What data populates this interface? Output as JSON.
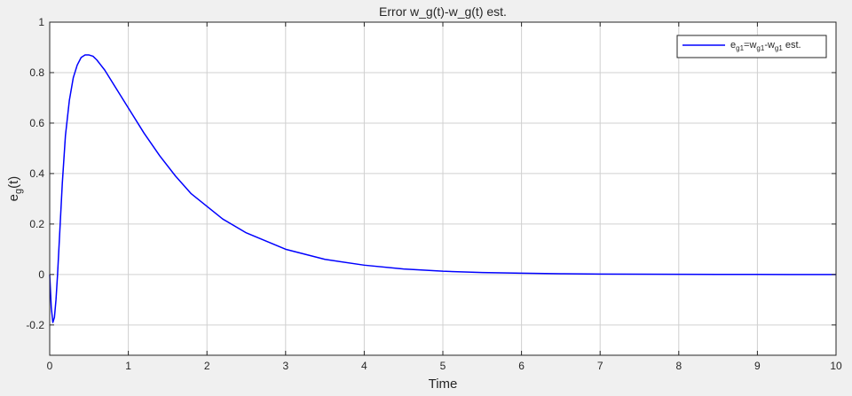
{
  "chart_data": {
    "type": "line",
    "title": "Error w_g(t)-w_g(t) est.",
    "xlabel": "Time",
    "ylabel": {
      "base": "e",
      "sub": "g",
      "rest": "(t)"
    },
    "xlim": [
      0,
      10
    ],
    "ylim": [
      -0.32,
      1
    ],
    "xticks": [
      0,
      1,
      2,
      3,
      4,
      5,
      6,
      7,
      8,
      9,
      10
    ],
    "xtick_labels": [
      "0",
      "1",
      "2",
      "3",
      "4",
      "5",
      "6",
      "7",
      "8",
      "9",
      "10"
    ],
    "yticks": [
      -0.2,
      0,
      0.2,
      0.4,
      0.6,
      0.8,
      1
    ],
    "ytick_labels": [
      "-0.2",
      "0",
      "0.2",
      "0.4",
      "0.6",
      "0.8",
      "1"
    ],
    "grid": true,
    "legend_position": "top-right",
    "colors": {
      "series": "#0000ff",
      "grid": "#d0d0d0",
      "axis": "#262626",
      "background": "#ffffff",
      "figure": "#f0f0f0"
    },
    "series": [
      {
        "name": {
          "p1": "e",
          "s1": "g1",
          "p2": "=w",
          "s2": "g1",
          "p3": "-w",
          "s3": "g1",
          "p4": " est."
        },
        "x": [
          0,
          0.02,
          0.04,
          0.06,
          0.08,
          0.1,
          0.13,
          0.16,
          0.2,
          0.25,
          0.3,
          0.35,
          0.4,
          0.45,
          0.5,
          0.55,
          0.6,
          0.65,
          0.7,
          0.8,
          0.9,
          1.0,
          1.2,
          1.4,
          1.6,
          1.8,
          2.0,
          2.2,
          2.5,
          3.0,
          3.5,
          4.0,
          4.5,
          5.0,
          5.5,
          6.0,
          6.5,
          7.0,
          7.5,
          8.0,
          8.5,
          9.0,
          9.5,
          10.0
        ],
        "y": [
          0,
          -0.13,
          -0.19,
          -0.17,
          -0.1,
          0.0,
          0.18,
          0.36,
          0.55,
          0.69,
          0.78,
          0.83,
          0.86,
          0.87,
          0.87,
          0.865,
          0.85,
          0.83,
          0.81,
          0.76,
          0.71,
          0.66,
          0.56,
          0.47,
          0.39,
          0.32,
          0.27,
          0.22,
          0.165,
          0.1,
          0.06,
          0.037,
          0.022,
          0.013,
          0.008,
          0.005,
          0.003,
          0.0018,
          0.001,
          0.0006,
          0.0003,
          0.0002,
          0.0001,
          0
        ]
      }
    ]
  }
}
